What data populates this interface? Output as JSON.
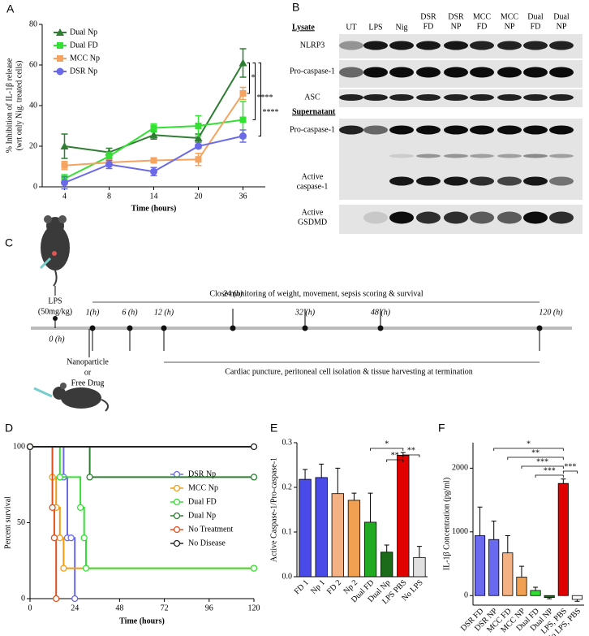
{
  "chart_data": [
    {
      "type": "line",
      "label": "A",
      "categories": [
        4,
        8,
        14,
        20,
        36
      ],
      "xlabel": "Time (hours)",
      "ylabel": [
        "% Inhibition of IL-1β release",
        "(wrt only Nig. treated cells)"
      ],
      "ylim": [
        0,
        80
      ],
      "yticks": [
        0,
        20,
        40,
        60,
        80
      ],
      "legend": "upper left",
      "series": [
        {
          "name": "Dual Np",
          "color": "#2e7d32",
          "marker": "triangle",
          "values": [
            20,
            17,
            25.5,
            24,
            61
          ],
          "errors": [
            6,
            2,
            2,
            2,
            7
          ]
        },
        {
          "name": "Dual FD",
          "color": "#33e033",
          "marker": "square",
          "values": [
            4,
            15,
            29,
            30,
            33
          ],
          "errors": [
            2,
            2,
            2,
            5,
            9
          ]
        },
        {
          "name": "MCC Np",
          "color": "#f4a460",
          "marker": "square",
          "values": [
            10.5,
            12,
            13,
            13.5,
            46
          ],
          "errors": [
            2,
            1,
            1,
            3,
            3
          ]
        },
        {
          "name": "DSR Np",
          "color": "#6a6ae8",
          "marker": "circle",
          "values": [
            2,
            11,
            7.5,
            20,
            25
          ],
          "errors": [
            3,
            2,
            2,
            1,
            3
          ]
        }
      ],
      "annotations": [
        "*",
        "****",
        "****"
      ]
    },
    {
      "type": "step",
      "label": "D",
      "xlabel": "Time (hours)",
      "ylabel": "Percent survival",
      "xlim": [
        0,
        120
      ],
      "xticks": [
        0,
        24,
        48,
        72,
        96,
        120
      ],
      "ylim": [
        0,
        100
      ],
      "yticks": [
        0,
        50,
        100
      ],
      "legend": "center right",
      "series": [
        {
          "name": "DSR Np",
          "color": "#6a6ae8",
          "x": [
            0,
            18,
            20,
            22,
            24
          ],
          "values": [
            100,
            80,
            40,
            40,
            0
          ]
        },
        {
          "name": "MCC Np",
          "color": "#f39c12",
          "x": [
            0,
            12,
            14,
            16,
            18,
            120
          ],
          "values": [
            100,
            80,
            60,
            40,
            20,
            20
          ]
        },
        {
          "name": "Dual FD",
          "color": "#33e033",
          "x": [
            0,
            16,
            27,
            29,
            30,
            120
          ],
          "values": [
            100,
            80,
            60,
            40,
            20,
            20
          ]
        },
        {
          "name": "Dual Np",
          "color": "#2e7d32",
          "x": [
            0,
            32,
            120
          ],
          "values": [
            100,
            80,
            80
          ]
        },
        {
          "name": "No Treatment",
          "color": "#e0501e",
          "x": [
            0,
            12,
            13,
            14
          ],
          "values": [
            100,
            60,
            40,
            0
          ]
        },
        {
          "name": "No Disease",
          "color": "#222222",
          "x": [
            0,
            120
          ],
          "values": [
            100,
            100
          ]
        }
      ]
    },
    {
      "type": "bar",
      "label": "E",
      "ylabel": "Active Caspase-1/Pro-caspase-1",
      "categories": [
        "FD 1",
        "Np 1",
        "FD 2",
        "Np 2",
        "Dual FD",
        "Dual Np",
        "LPS PBS",
        "No LPS"
      ],
      "values": [
        0.218,
        0.222,
        0.186,
        0.171,
        0.122,
        0.055,
        0.272,
        0.043
      ],
      "errors": [
        0.022,
        0.03,
        0.057,
        0.016,
        0.065,
        0.016,
        0.006,
        0.025
      ],
      "colors": [
        "#4a4ae8",
        "#4a4ae8",
        "#f4b183",
        "#f0a050",
        "#22aa22",
        "#1b6b1b",
        "#e00000",
        "#e0e0e0"
      ],
      "ylim": [
        0,
        0.3
      ],
      "yticks": [
        {
          "value": 0,
          "label": "0.0"
        },
        0.1,
        0.2,
        0.3
      ],
      "annotations": [
        "*",
        "**",
        "**"
      ]
    },
    {
      "type": "bar",
      "label": "F",
      "ylabel": "IL-1β Concentration (pg/ml)",
      "categories": [
        "DSR FD",
        "DSR NP",
        "MCC FD",
        "MCC NP",
        "Dual FD",
        "Dual NP",
        "LPS, PBS",
        "No LPS, PBS"
      ],
      "values": [
        940,
        880,
        670,
        290,
        80,
        -30,
        1760,
        -60
      ],
      "errors": [
        450,
        290,
        270,
        170,
        50,
        20,
        70,
        30
      ],
      "colors": [
        "#6a6af0",
        "#6a6af0",
        "#f4b183",
        "#f0a050",
        "#33dd33",
        "#1b6b1b",
        "#e00000",
        "#ffffff"
      ],
      "ylim": [
        -150,
        2400
      ],
      "yticks": [
        0,
        1000,
        2000
      ],
      "annotations": [
        "*",
        "**",
        "***",
        "***",
        "***"
      ]
    }
  ],
  "blot": {
    "label": "B",
    "lanes": [
      [
        "UT"
      ],
      [
        "LPS"
      ],
      [
        "Nig"
      ],
      [
        "DSR",
        "FD"
      ],
      [
        "DSR",
        "NP"
      ],
      [
        "MCC",
        "FD"
      ],
      [
        "MCC",
        "NP"
      ],
      [
        "Dual",
        "FD"
      ],
      [
        "Dual",
        "NP"
      ]
    ],
    "sections": [
      {
        "title": "Lysate",
        "rows": [
          [
            "NLRP3"
          ],
          [
            "Pro-caspase-1"
          ],
          [
            "ASC"
          ]
        ]
      },
      {
        "title": "Supernatant",
        "rows": [
          [
            "Pro-caspase-1"
          ],
          [
            "Active",
            "caspase-1"
          ],
          [
            "Active",
            "GSDMD"
          ]
        ]
      }
    ]
  },
  "timeline": {
    "label": "C",
    "injection": [
      "LPS",
      "(50mg/kg)"
    ],
    "monitoring": "Close monitoring of weight, movement, sepsis scoring & survival",
    "timepoints": [
      "0 (h)",
      "1(h)",
      "6 (h)",
      "12 (h)",
      "24 (h)",
      "32 (h)",
      "48 (h)",
      "120 (h)"
    ],
    "treatment": [
      "Nanoparticle",
      "or",
      "Free Drug"
    ],
    "termination": "Cardiac puncture, peritoneal cell isolation & tissue harvesting at termination"
  }
}
